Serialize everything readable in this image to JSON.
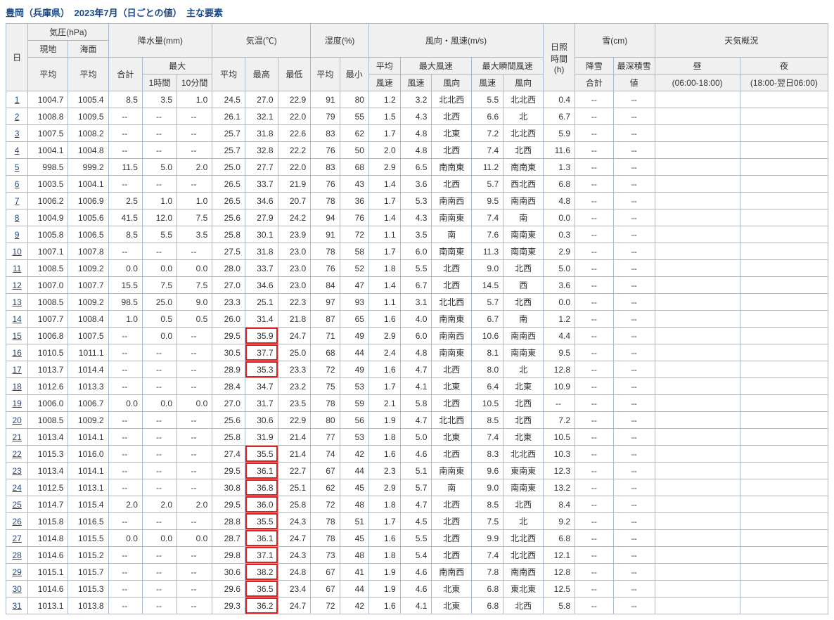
{
  "title": "豊岡（兵庫県）　2023年7月（日ごとの値）　主な要素",
  "colors": {
    "border": "#a8b8d0",
    "header_bg": "#f0f0f0",
    "link": "#1a4a8a",
    "title": "#1a4a8a",
    "highlight_border": "#e02020",
    "background": "#ffffff"
  },
  "empty_marker": "--",
  "headers": {
    "day": "日",
    "pressure": "気圧(hPa)",
    "pressure_local": "現地",
    "pressure_sea": "海面",
    "pressure_avg": "平均",
    "precip": "降水量(mm)",
    "precip_total": "合計",
    "precip_max": "最大",
    "precip_1h": "1時間",
    "precip_10m": "10分間",
    "temp": "気温(℃)",
    "temp_avg": "平均",
    "temp_max": "最高",
    "temp_min": "最低",
    "humidity": "湿度(%)",
    "hum_avg": "平均",
    "hum_min": "最小",
    "wind": "風向・風速(m/s)",
    "wind_avg": "平均\n風速",
    "wind_avg1": "平均",
    "wind_avg2": "風速",
    "wind_max": "最大風速",
    "wind_gust": "最大瞬間風速",
    "wind_spd": "風速",
    "wind_dir": "風向",
    "sunshine": "日照\n時間\n(h)",
    "snow": "雪(cm)",
    "snow_fall": "降雪",
    "snow_fall2": "合計",
    "snow_depth": "最深積雪",
    "snow_depth2": "値",
    "weather": "天気概況",
    "wx_day": "昼\n(06:00-18:00)",
    "wx_day1": "昼",
    "wx_day2": "(06:00-18:00)",
    "wx_night": "夜\n(18:00-翌日06:00)",
    "wx_night1": "夜",
    "wx_night2": "(18:00-翌日06:00)"
  },
  "rows": [
    {
      "day": 1,
      "p_local": "1004.7",
      "p_sea": "1005.4",
      "prec_total": "8.5",
      "prec_1h": "3.5",
      "prec_10m": "1.0",
      "t_avg": "24.5",
      "t_max": "27.0",
      "t_min": "22.9",
      "h_avg": "91",
      "h_min": "80",
      "ws_avg": "1.2",
      "ws_max": "3.2",
      "wd_max": "北北西",
      "ws_gust": "5.5",
      "wd_gust": "北北西",
      "sun": "0.4",
      "hot": false
    },
    {
      "day": 2,
      "p_local": "1008.8",
      "p_sea": "1009.5",
      "prec_total": "--",
      "prec_1h": "--",
      "prec_10m": "--",
      "t_avg": "26.1",
      "t_max": "32.1",
      "t_min": "22.0",
      "h_avg": "79",
      "h_min": "55",
      "ws_avg": "1.5",
      "ws_max": "4.3",
      "wd_max": "北西",
      "ws_gust": "6.6",
      "wd_gust": "北",
      "sun": "6.7",
      "hot": false
    },
    {
      "day": 3,
      "p_local": "1007.5",
      "p_sea": "1008.2",
      "prec_total": "--",
      "prec_1h": "--",
      "prec_10m": "--",
      "t_avg": "25.7",
      "t_max": "31.8",
      "t_min": "22.6",
      "h_avg": "83",
      "h_min": "62",
      "ws_avg": "1.7",
      "ws_max": "4.8",
      "wd_max": "北東",
      "ws_gust": "7.2",
      "wd_gust": "北北西",
      "sun": "5.9",
      "hot": false
    },
    {
      "day": 4,
      "p_local": "1004.1",
      "p_sea": "1004.8",
      "prec_total": "--",
      "prec_1h": "--",
      "prec_10m": "--",
      "t_avg": "25.7",
      "t_max": "32.8",
      "t_min": "22.2",
      "h_avg": "76",
      "h_min": "50",
      "ws_avg": "2.0",
      "ws_max": "4.8",
      "wd_max": "北西",
      "ws_gust": "7.4",
      "wd_gust": "北西",
      "sun": "11.6",
      "hot": false
    },
    {
      "day": 5,
      "p_local": "998.5",
      "p_sea": "999.2",
      "prec_total": "11.5",
      "prec_1h": "5.0",
      "prec_10m": "2.0",
      "t_avg": "25.0",
      "t_max": "27.7",
      "t_min": "22.0",
      "h_avg": "83",
      "h_min": "68",
      "ws_avg": "2.9",
      "ws_max": "6.5",
      "wd_max": "南南東",
      "ws_gust": "11.2",
      "wd_gust": "南南東",
      "sun": "1.3",
      "hot": false
    },
    {
      "day": 6,
      "p_local": "1003.5",
      "p_sea": "1004.1",
      "prec_total": "--",
      "prec_1h": "--",
      "prec_10m": "--",
      "t_avg": "26.5",
      "t_max": "33.7",
      "t_min": "21.9",
      "h_avg": "76",
      "h_min": "43",
      "ws_avg": "1.4",
      "ws_max": "3.6",
      "wd_max": "北西",
      "ws_gust": "5.7",
      "wd_gust": "西北西",
      "sun": "6.8",
      "hot": false
    },
    {
      "day": 7,
      "p_local": "1006.2",
      "p_sea": "1006.9",
      "prec_total": "2.5",
      "prec_1h": "1.0",
      "prec_10m": "1.0",
      "t_avg": "26.5",
      "t_max": "34.6",
      "t_min": "20.7",
      "h_avg": "78",
      "h_min": "36",
      "ws_avg": "1.7",
      "ws_max": "5.3",
      "wd_max": "南南西",
      "ws_gust": "9.5",
      "wd_gust": "南南西",
      "sun": "4.8",
      "hot": false
    },
    {
      "day": 8,
      "p_local": "1004.9",
      "p_sea": "1005.6",
      "prec_total": "41.5",
      "prec_1h": "12.0",
      "prec_10m": "7.5",
      "t_avg": "25.6",
      "t_max": "27.9",
      "t_min": "24.2",
      "h_avg": "94",
      "h_min": "76",
      "ws_avg": "1.4",
      "ws_max": "4.3",
      "wd_max": "南南東",
      "ws_gust": "7.4",
      "wd_gust": "南",
      "sun": "0.0",
      "hot": false
    },
    {
      "day": 9,
      "p_local": "1005.8",
      "p_sea": "1006.5",
      "prec_total": "8.5",
      "prec_1h": "5.5",
      "prec_10m": "3.5",
      "t_avg": "25.8",
      "t_max": "30.1",
      "t_min": "23.9",
      "h_avg": "91",
      "h_min": "72",
      "ws_avg": "1.1",
      "ws_max": "3.5",
      "wd_max": "南",
      "ws_gust": "7.6",
      "wd_gust": "南南東",
      "sun": "0.3",
      "hot": false
    },
    {
      "day": 10,
      "p_local": "1007.1",
      "p_sea": "1007.8",
      "prec_total": "--",
      "prec_1h": "--",
      "prec_10m": "--",
      "t_avg": "27.5",
      "t_max": "31.8",
      "t_min": "23.0",
      "h_avg": "78",
      "h_min": "58",
      "ws_avg": "1.7",
      "ws_max": "6.0",
      "wd_max": "南南東",
      "ws_gust": "11.3",
      "wd_gust": "南南東",
      "sun": "2.9",
      "hot": false
    },
    {
      "day": 11,
      "p_local": "1008.5",
      "p_sea": "1009.2",
      "prec_total": "0.0",
      "prec_1h": "0.0",
      "prec_10m": "0.0",
      "t_avg": "28.0",
      "t_max": "33.7",
      "t_min": "23.0",
      "h_avg": "76",
      "h_min": "52",
      "ws_avg": "1.8",
      "ws_max": "5.5",
      "wd_max": "北西",
      "ws_gust": "9.0",
      "wd_gust": "北西",
      "sun": "5.0",
      "hot": false
    },
    {
      "day": 12,
      "p_local": "1007.0",
      "p_sea": "1007.7",
      "prec_total": "15.5",
      "prec_1h": "7.5",
      "prec_10m": "7.5",
      "t_avg": "27.0",
      "t_max": "34.6",
      "t_min": "23.0",
      "h_avg": "84",
      "h_min": "47",
      "ws_avg": "1.4",
      "ws_max": "6.7",
      "wd_max": "北西",
      "ws_gust": "14.5",
      "wd_gust": "西",
      "sun": "3.6",
      "hot": false
    },
    {
      "day": 13,
      "p_local": "1008.5",
      "p_sea": "1009.2",
      "prec_total": "98.5",
      "prec_1h": "25.0",
      "prec_10m": "9.0",
      "t_avg": "23.3",
      "t_max": "25.1",
      "t_min": "22.3",
      "h_avg": "97",
      "h_min": "93",
      "ws_avg": "1.1",
      "ws_max": "3.1",
      "wd_max": "北北西",
      "ws_gust": "5.7",
      "wd_gust": "北西",
      "sun": "0.0",
      "hot": false
    },
    {
      "day": 14,
      "p_local": "1007.7",
      "p_sea": "1008.4",
      "prec_total": "1.0",
      "prec_1h": "0.5",
      "prec_10m": "0.5",
      "t_avg": "26.0",
      "t_max": "31.4",
      "t_min": "21.8",
      "h_avg": "87",
      "h_min": "65",
      "ws_avg": "1.6",
      "ws_max": "4.0",
      "wd_max": "南南東",
      "ws_gust": "6.7",
      "wd_gust": "南",
      "sun": "1.2",
      "hot": false
    },
    {
      "day": 15,
      "p_local": "1006.8",
      "p_sea": "1007.5",
      "prec_total": "--",
      "prec_1h": "0.0",
      "prec_10m": "--",
      "t_avg": "29.5",
      "t_max": "35.9",
      "t_min": "24.7",
      "h_avg": "71",
      "h_min": "49",
      "ws_avg": "2.9",
      "ws_max": "6.0",
      "wd_max": "南南西",
      "ws_gust": "10.6",
      "wd_gust": "南南西",
      "sun": "4.4",
      "hot": true
    },
    {
      "day": 16,
      "p_local": "1010.5",
      "p_sea": "1011.1",
      "prec_total": "--",
      "prec_1h": "--",
      "prec_10m": "--",
      "t_avg": "30.5",
      "t_max": "37.7",
      "t_min": "25.0",
      "h_avg": "68",
      "h_min": "44",
      "ws_avg": "2.4",
      "ws_max": "4.8",
      "wd_max": "南南東",
      "ws_gust": "8.1",
      "wd_gust": "南南東",
      "sun": "9.5",
      "hot": true
    },
    {
      "day": 17,
      "p_local": "1013.7",
      "p_sea": "1014.4",
      "prec_total": "--",
      "prec_1h": "--",
      "prec_10m": "--",
      "t_avg": "28.9",
      "t_max": "35.3",
      "t_min": "23.3",
      "h_avg": "72",
      "h_min": "49",
      "ws_avg": "1.6",
      "ws_max": "4.7",
      "wd_max": "北西",
      "ws_gust": "8.0",
      "wd_gust": "北",
      "sun": "12.8",
      "hot": true
    },
    {
      "day": 18,
      "p_local": "1012.6",
      "p_sea": "1013.3",
      "prec_total": "--",
      "prec_1h": "--",
      "prec_10m": "--",
      "t_avg": "28.4",
      "t_max": "34.7",
      "t_min": "23.2",
      "h_avg": "75",
      "h_min": "53",
      "ws_avg": "1.7",
      "ws_max": "4.1",
      "wd_max": "北東",
      "ws_gust": "6.4",
      "wd_gust": "北東",
      "sun": "10.9",
      "hot": false
    },
    {
      "day": 19,
      "p_local": "1006.0",
      "p_sea": "1006.7",
      "prec_total": "0.0",
      "prec_1h": "0.0",
      "prec_10m": "0.0",
      "t_avg": "27.0",
      "t_max": "31.7",
      "t_min": "23.5",
      "h_avg": "78",
      "h_min": "59",
      "ws_avg": "2.1",
      "ws_max": "5.8",
      "wd_max": "北西",
      "ws_gust": "10.5",
      "wd_gust": "北西",
      "sun": "--",
      "hot": false
    },
    {
      "day": 20,
      "p_local": "1008.5",
      "p_sea": "1009.2",
      "prec_total": "--",
      "prec_1h": "--",
      "prec_10m": "--",
      "t_avg": "25.6",
      "t_max": "30.6",
      "t_min": "22.9",
      "h_avg": "80",
      "h_min": "56",
      "ws_avg": "1.9",
      "ws_max": "4.7",
      "wd_max": "北北西",
      "ws_gust": "8.5",
      "wd_gust": "北西",
      "sun": "7.2",
      "hot": false
    },
    {
      "day": 21,
      "p_local": "1013.4",
      "p_sea": "1014.1",
      "prec_total": "--",
      "prec_1h": "--",
      "prec_10m": "--",
      "t_avg": "25.8",
      "t_max": "31.9",
      "t_min": "21.4",
      "h_avg": "77",
      "h_min": "53",
      "ws_avg": "1.8",
      "ws_max": "5.0",
      "wd_max": "北東",
      "ws_gust": "7.4",
      "wd_gust": "北東",
      "sun": "10.5",
      "hot": false
    },
    {
      "day": 22,
      "p_local": "1015.3",
      "p_sea": "1016.0",
      "prec_total": "--",
      "prec_1h": "--",
      "prec_10m": "--",
      "t_avg": "27.4",
      "t_max": "35.5",
      "t_min": "21.4",
      "h_avg": "74",
      "h_min": "42",
      "ws_avg": "1.6",
      "ws_max": "4.6",
      "wd_max": "北西",
      "ws_gust": "8.3",
      "wd_gust": "北北西",
      "sun": "10.3",
      "hot": true
    },
    {
      "day": 23,
      "p_local": "1013.4",
      "p_sea": "1014.1",
      "prec_total": "--",
      "prec_1h": "--",
      "prec_10m": "--",
      "t_avg": "29.5",
      "t_max": "36.1",
      "t_min": "22.7",
      "h_avg": "67",
      "h_min": "44",
      "ws_avg": "2.3",
      "ws_max": "5.1",
      "wd_max": "南南東",
      "ws_gust": "9.6",
      "wd_gust": "東南東",
      "sun": "12.3",
      "hot": true
    },
    {
      "day": 24,
      "p_local": "1012.5",
      "p_sea": "1013.1",
      "prec_total": "--",
      "prec_1h": "--",
      "prec_10m": "--",
      "t_avg": "30.8",
      "t_max": "36.8",
      "t_min": "25.1",
      "h_avg": "62",
      "h_min": "45",
      "ws_avg": "2.9",
      "ws_max": "5.7",
      "wd_max": "南",
      "ws_gust": "9.0",
      "wd_gust": "南南東",
      "sun": "13.2",
      "hot": true
    },
    {
      "day": 25,
      "p_local": "1014.7",
      "p_sea": "1015.4",
      "prec_total": "2.0",
      "prec_1h": "2.0",
      "prec_10m": "2.0",
      "t_avg": "29.5",
      "t_max": "36.0",
      "t_min": "25.8",
      "h_avg": "72",
      "h_min": "48",
      "ws_avg": "1.8",
      "ws_max": "4.7",
      "wd_max": "北西",
      "ws_gust": "8.5",
      "wd_gust": "北西",
      "sun": "8.4",
      "hot": true
    },
    {
      "day": 26,
      "p_local": "1015.8",
      "p_sea": "1016.5",
      "prec_total": "--",
      "prec_1h": "--",
      "prec_10m": "--",
      "t_avg": "28.8",
      "t_max": "35.5",
      "t_min": "24.3",
      "h_avg": "78",
      "h_min": "51",
      "ws_avg": "1.7",
      "ws_max": "4.5",
      "wd_max": "北西",
      "ws_gust": "7.5",
      "wd_gust": "北",
      "sun": "9.2",
      "hot": true
    },
    {
      "day": 27,
      "p_local": "1014.8",
      "p_sea": "1015.5",
      "prec_total": "0.0",
      "prec_1h": "0.0",
      "prec_10m": "0.0",
      "t_avg": "28.7",
      "t_max": "36.1",
      "t_min": "24.7",
      "h_avg": "78",
      "h_min": "45",
      "ws_avg": "1.6",
      "ws_max": "5.5",
      "wd_max": "北西",
      "ws_gust": "9.9",
      "wd_gust": "北北西",
      "sun": "6.8",
      "hot": true
    },
    {
      "day": 28,
      "p_local": "1014.6",
      "p_sea": "1015.2",
      "prec_total": "--",
      "prec_1h": "--",
      "prec_10m": "--",
      "t_avg": "29.8",
      "t_max": "37.1",
      "t_min": "24.3",
      "h_avg": "73",
      "h_min": "48",
      "ws_avg": "1.8",
      "ws_max": "5.4",
      "wd_max": "北西",
      "ws_gust": "7.4",
      "wd_gust": "北北西",
      "sun": "12.1",
      "hot": true
    },
    {
      "day": 29,
      "p_local": "1015.1",
      "p_sea": "1015.7",
      "prec_total": "--",
      "prec_1h": "--",
      "prec_10m": "--",
      "t_avg": "30.6",
      "t_max": "38.2",
      "t_min": "24.8",
      "h_avg": "67",
      "h_min": "41",
      "ws_avg": "1.9",
      "ws_max": "4.6",
      "wd_max": "南南西",
      "ws_gust": "7.8",
      "wd_gust": "南南西",
      "sun": "12.8",
      "hot": true
    },
    {
      "day": 30,
      "p_local": "1014.6",
      "p_sea": "1015.3",
      "prec_total": "--",
      "prec_1h": "--",
      "prec_10m": "--",
      "t_avg": "29.6",
      "t_max": "36.5",
      "t_min": "23.4",
      "h_avg": "67",
      "h_min": "44",
      "ws_avg": "1.9",
      "ws_max": "4.6",
      "wd_max": "北東",
      "ws_gust": "6.8",
      "wd_gust": "東北東",
      "sun": "12.5",
      "hot": true
    },
    {
      "day": 31,
      "p_local": "1013.1",
      "p_sea": "1013.8",
      "prec_total": "--",
      "prec_1h": "--",
      "prec_10m": "--",
      "t_avg": "29.3",
      "t_max": "36.2",
      "t_min": "24.7",
      "h_avg": "72",
      "h_min": "42",
      "ws_avg": "1.6",
      "ws_max": "4.1",
      "wd_max": "北東",
      "ws_gust": "6.8",
      "wd_gust": "北西",
      "sun": "5.8",
      "hot": true
    }
  ]
}
